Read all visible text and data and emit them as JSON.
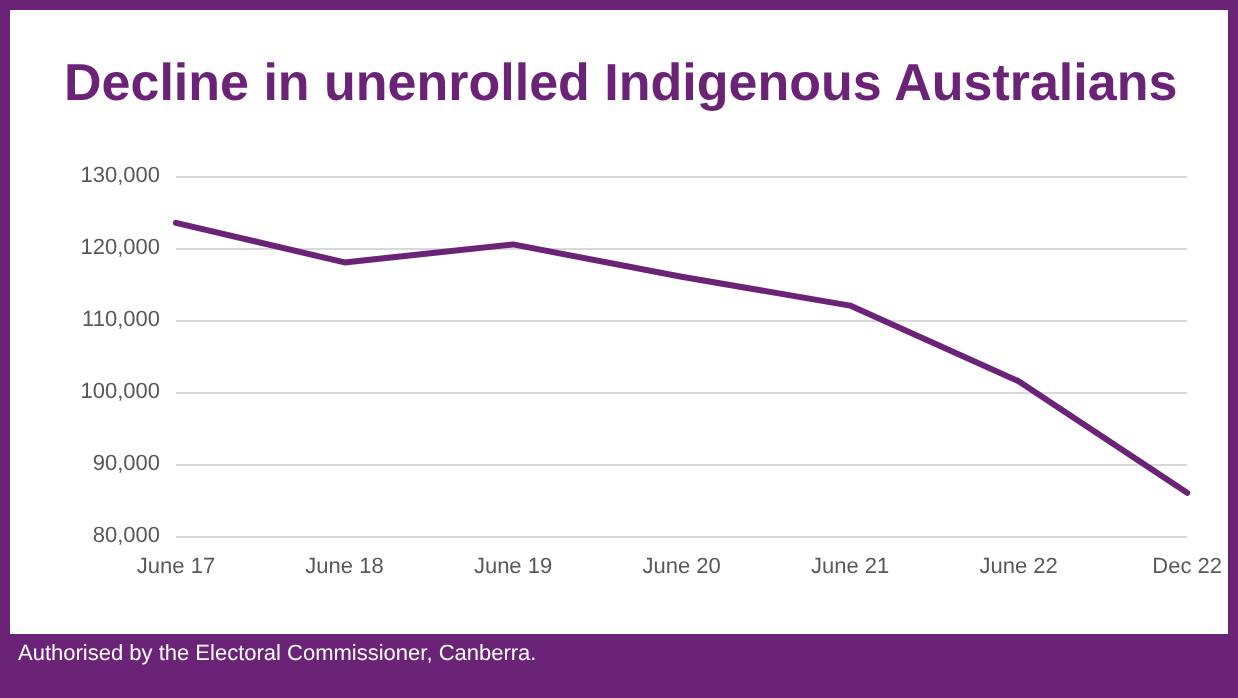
{
  "chart_data": {
    "type": "line",
    "title": "Decline in unenrolled Indigenous Australians",
    "categories": [
      "June 17",
      "June 18",
      "June 19",
      "June 20",
      "June 21",
      "June 22",
      "Dec 22"
    ],
    "series": [
      {
        "color": "#6b2378",
        "values": [
          123500,
          118000,
          120500,
          116000,
          112000,
          101500,
          86000
        ]
      }
    ],
    "ylim": [
      80000,
      130000
    ],
    "yticks": [
      {
        "value": 80000,
        "label": "80,000"
      },
      {
        "value": 90000,
        "label": "90,000"
      },
      {
        "value": 100000,
        "label": "100,000"
      },
      {
        "value": 110000,
        "label": "110,000"
      },
      {
        "value": 120000,
        "label": "120,000"
      },
      {
        "value": 130000,
        "label": "130,000"
      }
    ],
    "grid": "y",
    "marker": "none",
    "line_style": "solid",
    "annotations": [
      "Authorised by the Electoral Commissioner, Canberra."
    ]
  }
}
